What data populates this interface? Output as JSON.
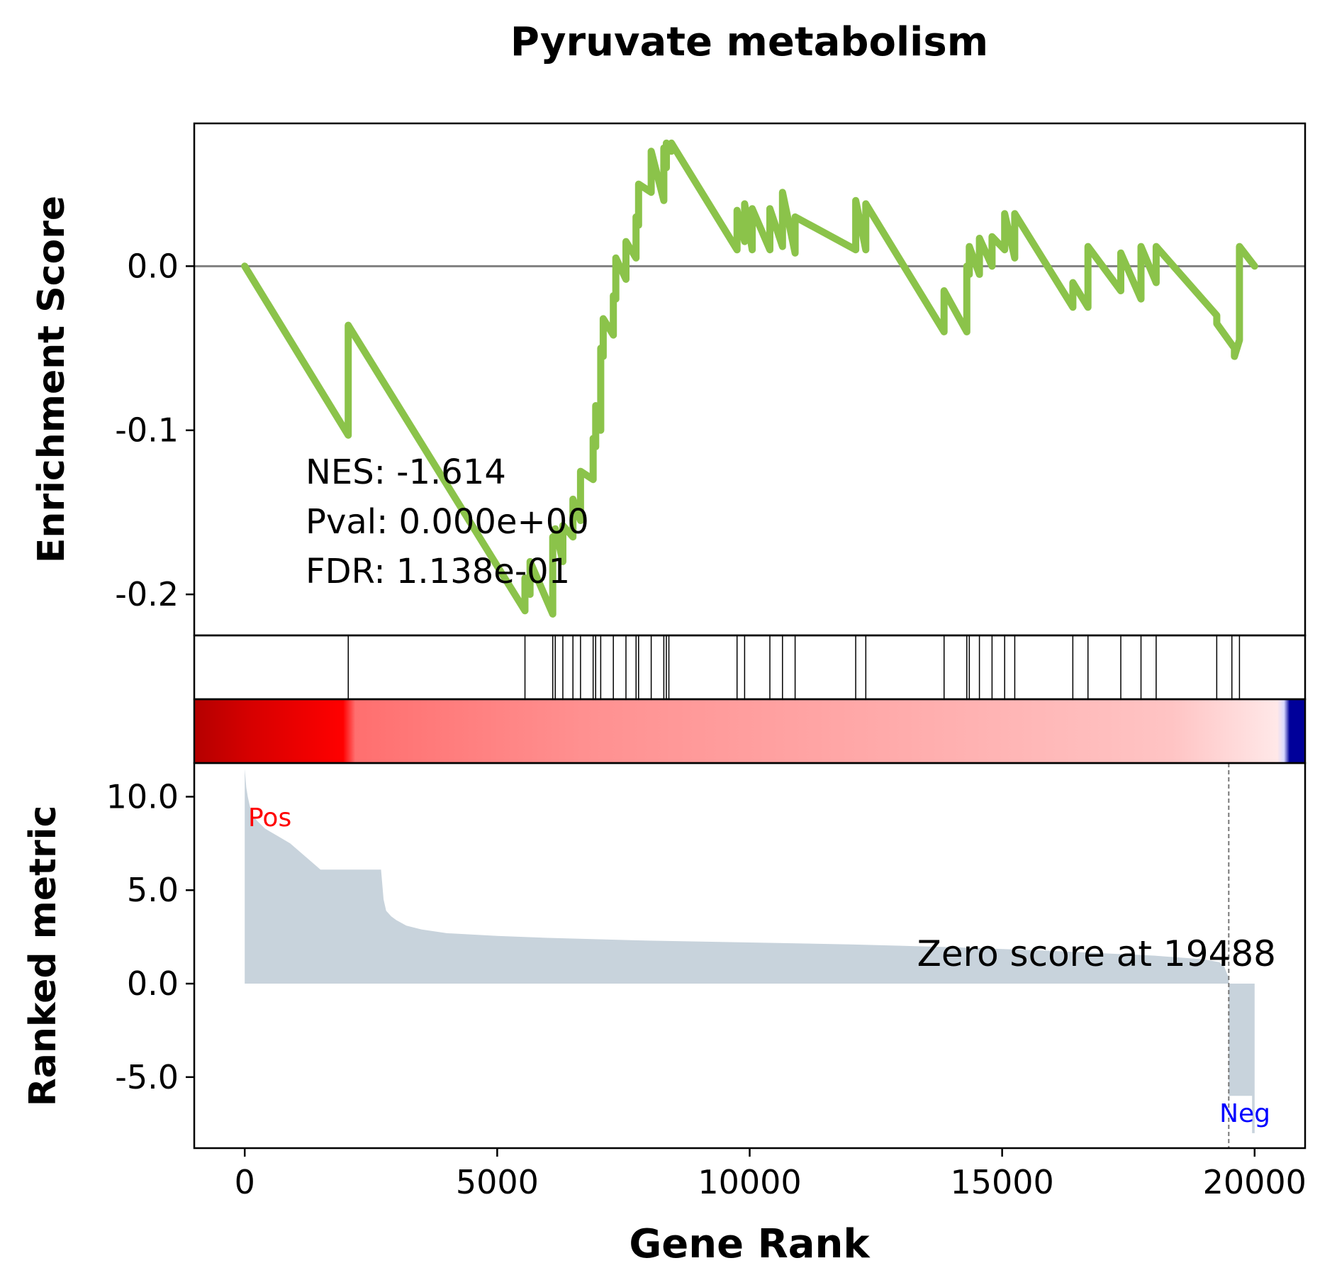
{
  "chart_data": {
    "type": "line",
    "title": "Pyruvate metabolism",
    "xlabel": "Gene Rank",
    "xlim": [
      -1000,
      21000
    ],
    "x_ticks": [
      0,
      5000,
      10000,
      15000,
      20000
    ],
    "x_tick_labels": [
      "0",
      "5000",
      "10000",
      "15000",
      "20000"
    ],
    "enrichment": {
      "ylabel": "Enrichment Score",
      "ylim": [
        -0.225,
        0.087
      ],
      "y_ticks": [
        0.0,
        -0.1,
        -0.2
      ],
      "y_tick_labels": [
        "0.0",
        "-0.1",
        "-0.2"
      ],
      "line_color": "#8bc34a",
      "zero_line_color": "#808080",
      "stats": {
        "nes": "NES: -1.614",
        "pval": "Pval: 0.000e+00",
        "fdr": "FDR: 1.138e-01"
      },
      "series": [
        {
          "x": [
            0,
            2050,
            2050,
            5550,
            5550,
            5650,
            5650,
            6100,
            6100,
            6150,
            6150,
            6300,
            6300,
            6500,
            6500,
            6650,
            6650,
            6900,
            6900,
            6950,
            6950,
            7050,
            7050,
            7100,
            7100,
            7300,
            7300,
            7350,
            7350,
            7550,
            7550,
            7750,
            7750,
            7800,
            7800,
            8050,
            8050,
            8300,
            8300,
            8350,
            8350,
            8450,
            8450,
            9750,
            9750,
            9900,
            9900,
            10050,
            10050,
            10400,
            10400,
            10650,
            10650,
            10900,
            10900,
            12100,
            12100,
            12300,
            12300,
            13850,
            13850,
            14300,
            14300,
            14350,
            14350,
            14550,
            14550,
            14800,
            14800,
            15050,
            15050,
            15250,
            15250,
            16400,
            16400,
            16700,
            16700,
            17350,
            17350,
            17750,
            17750,
            18050,
            18050,
            19250,
            19250,
            19600,
            19600,
            19700,
            19700,
            20000
          ],
          "y": [
            0.0,
            -0.103,
            -0.036,
            -0.21,
            -0.19,
            -0.2,
            -0.18,
            -0.212,
            -0.165,
            -0.17,
            -0.16,
            -0.18,
            -0.158,
            -0.165,
            -0.142,
            -0.155,
            -0.125,
            -0.13,
            -0.105,
            -0.11,
            -0.085,
            -0.1,
            -0.05,
            -0.055,
            -0.032,
            -0.042,
            -0.018,
            -0.02,
            0.005,
            -0.008,
            0.015,
            0.005,
            0.03,
            0.025,
            0.05,
            0.045,
            0.07,
            0.04,
            0.072,
            0.06,
            0.075,
            0.07,
            0.075,
            0.01,
            0.034,
            0.015,
            0.038,
            0.01,
            0.035,
            0.01,
            0.035,
            0.012,
            0.045,
            0.008,
            0.03,
            0.01,
            0.04,
            0.01,
            0.038,
            -0.04,
            -0.015,
            -0.04,
            0.0,
            -0.005,
            0.012,
            -0.005,
            0.017,
            0.0,
            0.018,
            0.01,
            0.032,
            0.005,
            0.032,
            -0.025,
            -0.01,
            -0.025,
            0.012,
            -0.015,
            0.008,
            -0.02,
            0.012,
            -0.01,
            0.012,
            -0.03,
            -0.035,
            -0.05,
            -0.055,
            -0.045,
            0.012,
            0.0
          ]
        }
      ]
    },
    "hits": [
      2050,
      5550,
      6100,
      6150,
      6300,
      6500,
      6650,
      6900,
      6950,
      7050,
      7300,
      7550,
      7750,
      7800,
      8050,
      8300,
      8350,
      8400,
      9750,
      9900,
      10400,
      10650,
      10900,
      12100,
      12300,
      13850,
      14300,
      14350,
      14550,
      14800,
      15050,
      15250,
      16400,
      16700,
      17350,
      17750,
      18050,
      19250,
      19550,
      19700
    ],
    "ranked_metric": {
      "ylabel": "Ranked metric",
      "ylim": [
        -8.8,
        11.8
      ],
      "y_ticks": [
        10.0,
        5.0,
        0.0,
        -5.0
      ],
      "y_tick_labels": [
        "10.0",
        "5.0",
        "0.0",
        "-5.0"
      ],
      "fill_color": "#c8d3dc",
      "x": [
        0,
        30,
        60,
        100,
        150,
        250,
        400,
        650,
        900,
        1500,
        2700,
        2750,
        2800,
        2900,
        3000,
        3200,
        3500,
        4000,
        5000,
        6000,
        8000,
        10000,
        12000,
        14000,
        16000,
        18000,
        19000,
        19300,
        19400,
        19488,
        19488,
        19950,
        19950,
        20000
      ],
      "values": [
        11.5,
        10.5,
        10.0,
        9.5,
        9.0,
        8.7,
        8.3,
        7.9,
        7.5,
        6.1,
        6.1,
        4.5,
        3.9,
        3.6,
        3.4,
        3.1,
        2.9,
        2.7,
        2.55,
        2.45,
        2.3,
        2.2,
        2.1,
        1.95,
        1.75,
        1.5,
        1.3,
        1.15,
        0.9,
        0.3,
        -6.0,
        -6.0,
        -8.0,
        -8.0
      ],
      "zero_score_label": "Zero score at 19488",
      "zero_score_x": 19488,
      "pos_label": "Pos",
      "neg_label": "Neg",
      "pos_color": "#ff0000",
      "neg_color": "#0000ff"
    },
    "colorbar": {
      "stops": [
        "#b40000",
        "#d60000",
        "#ff0000",
        "#ff6f6f",
        "#ff9090",
        "#ffa8a8",
        "#ffc4c4",
        "#ffe8e8",
        "#d8d8ff",
        "#00009a"
      ]
    }
  }
}
